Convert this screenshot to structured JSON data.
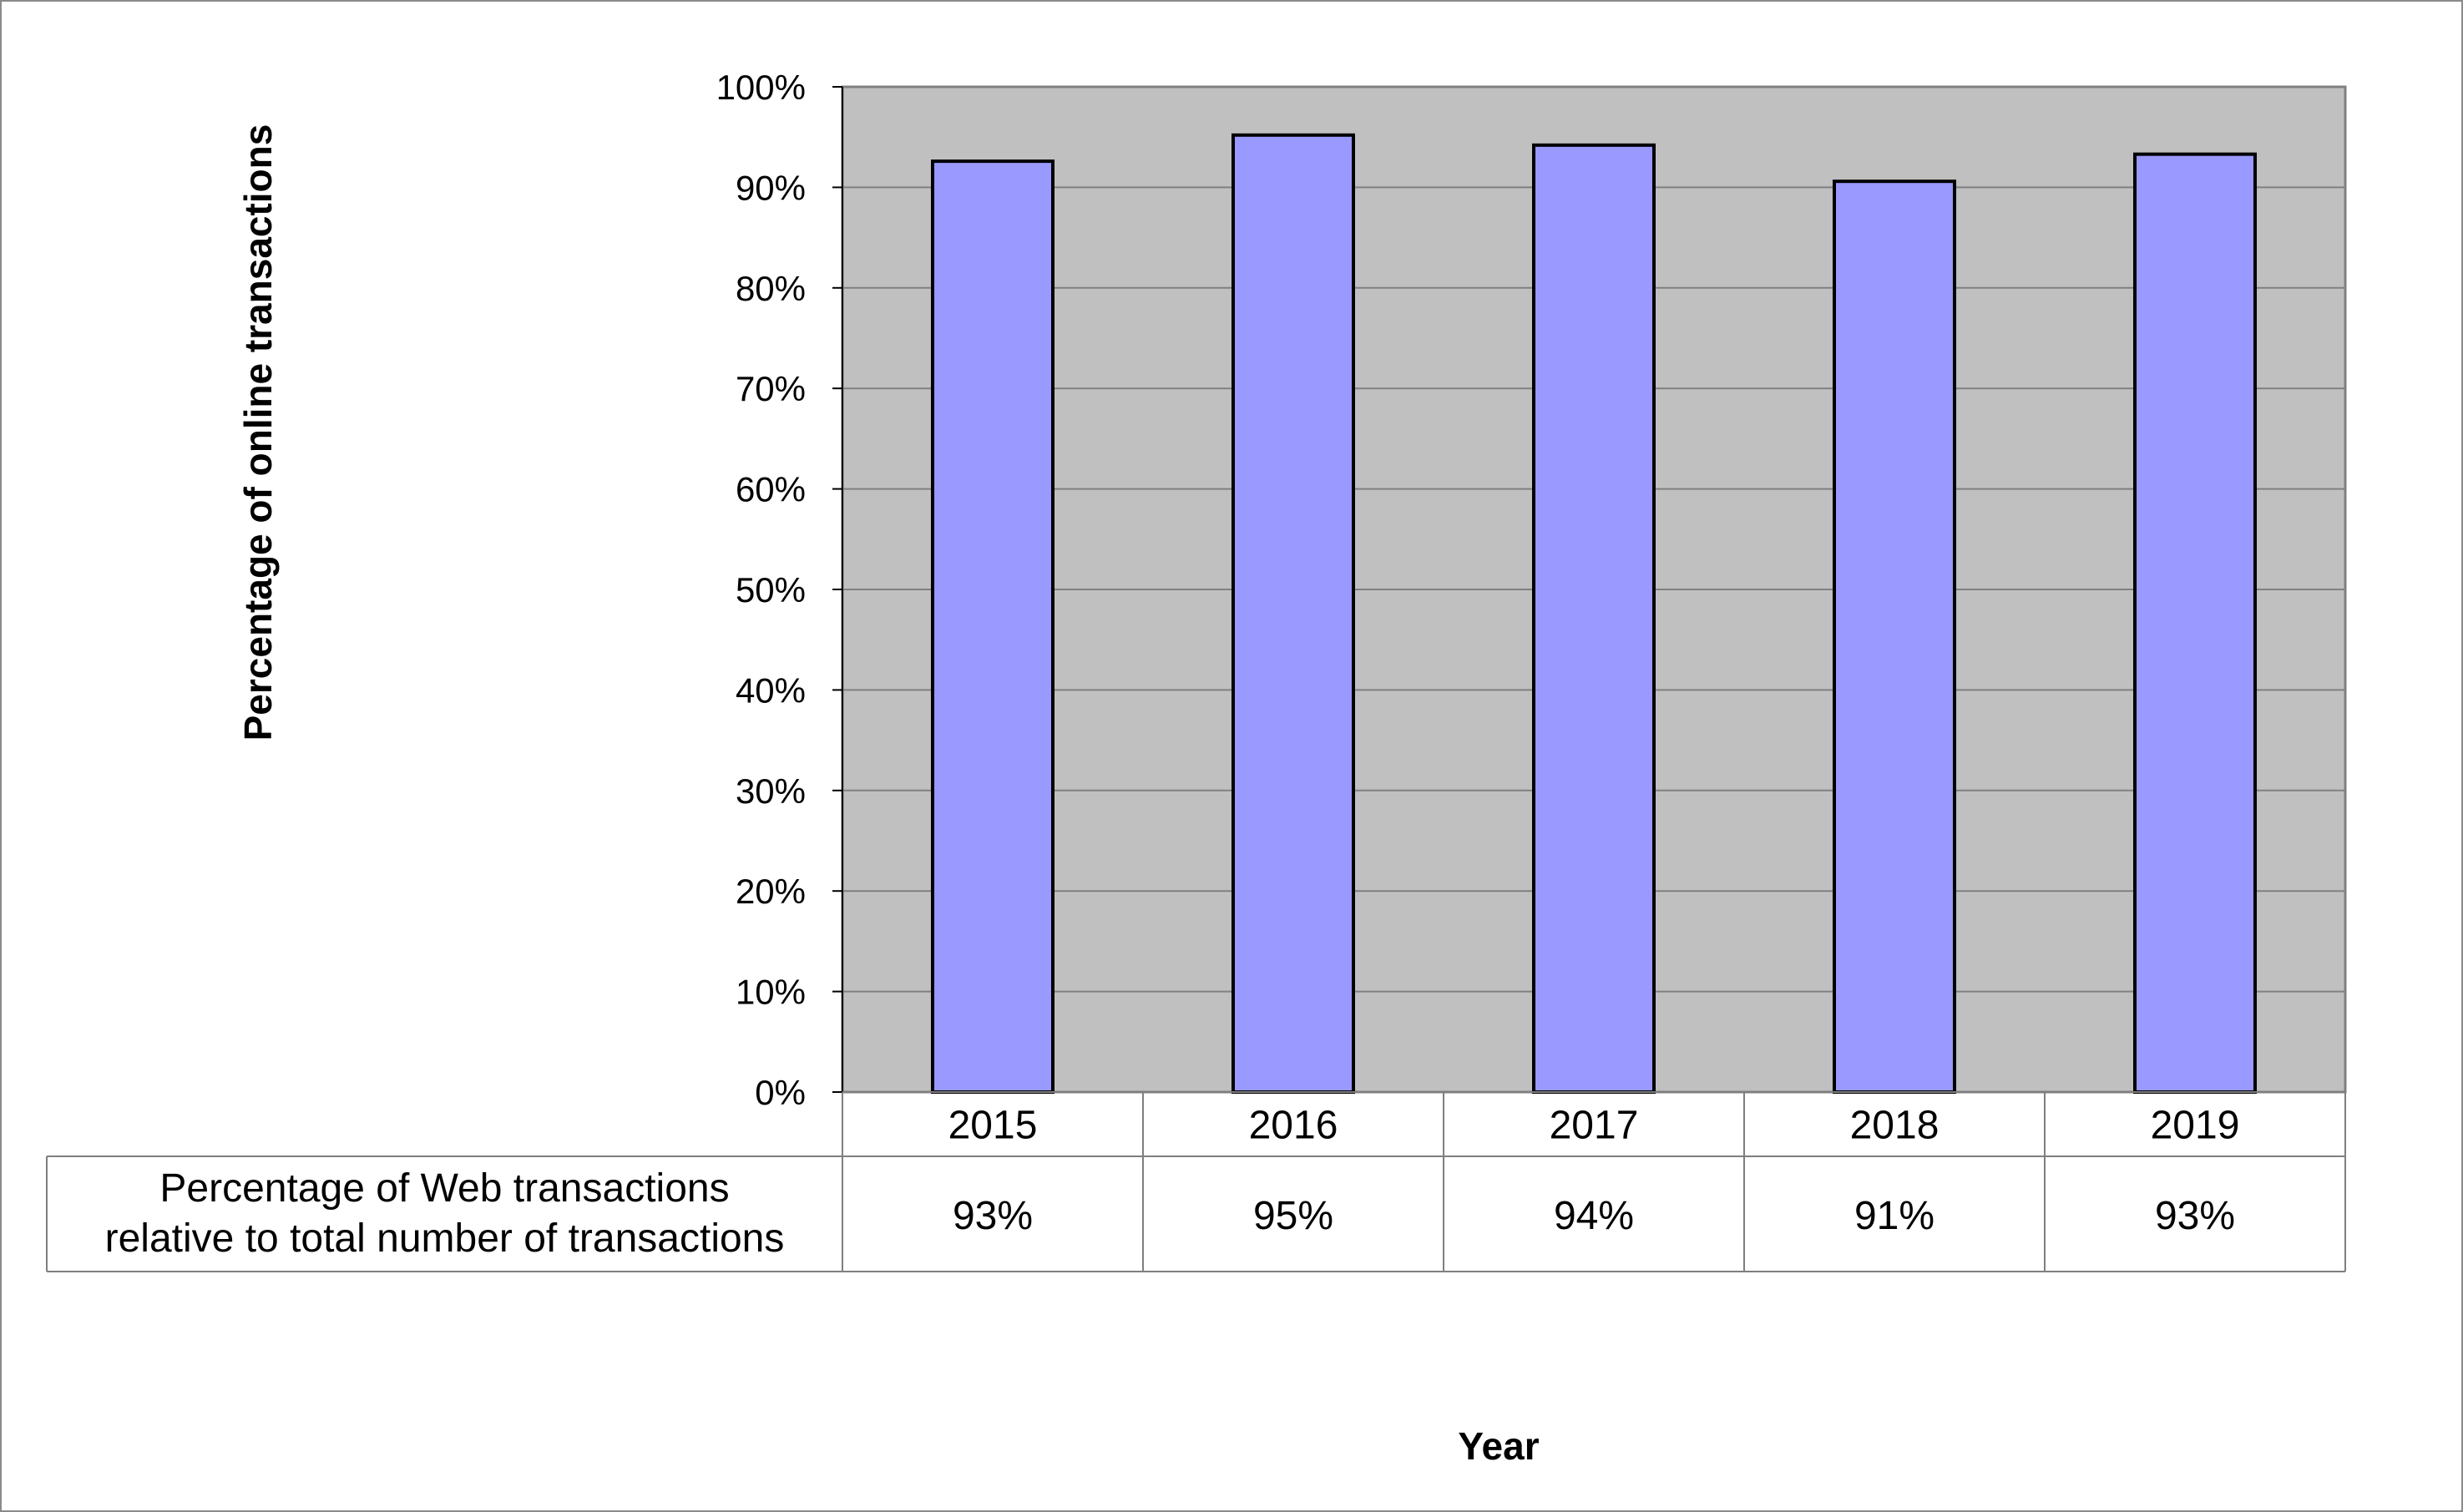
{
  "chart_data": {
    "type": "bar",
    "title": "",
    "xlabel": "Year",
    "ylabel": "Percentage of online transactions",
    "ylim": [
      0,
      100
    ],
    "y_ticks": [
      "0%",
      "10%",
      "20%",
      "30%",
      "40%",
      "50%",
      "60%",
      "70%",
      "80%",
      "90%",
      "100%"
    ],
    "grid": true,
    "categories": [
      "2015",
      "2016",
      "2017",
      "2018",
      "2019"
    ],
    "series": [
      {
        "name": "Percentage of Web transactions relative to total number of transactions",
        "values": [
          92.6,
          95.2,
          94.2,
          90.6,
          93.3
        ]
      }
    ],
    "table": {
      "row_label_lines": [
        "Percentage of Web transactions",
        "relative to total number of transactions"
      ],
      "values": [
        "93%",
        "95%",
        "94%",
        "91%",
        "93%"
      ]
    },
    "colors": {
      "plot_background": "#c0c0c0",
      "bar_fill": "#9999ff",
      "bar_stroke": "#000000",
      "gridline": "#808080"
    }
  }
}
